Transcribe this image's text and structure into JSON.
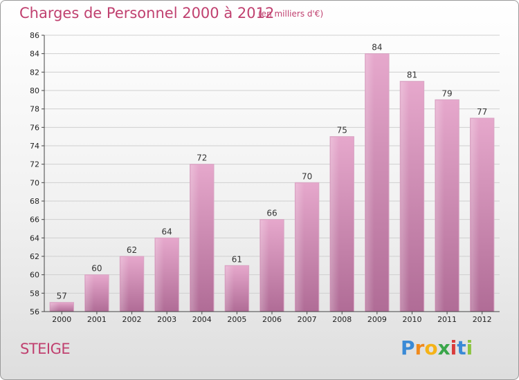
{
  "chart_data": {
    "type": "bar",
    "title": "Charges de Personnel 2000 à 2012",
    "subtitle": "(en milliers d'€)",
    "categories": [
      "2000",
      "2001",
      "2002",
      "2003",
      "2004",
      "2005",
      "2006",
      "2007",
      "2008",
      "2009",
      "2010",
      "2011",
      "2012"
    ],
    "values": [
      57,
      60,
      62,
      64,
      72,
      61,
      66,
      70,
      75,
      84,
      81,
      79,
      77
    ],
    "ylim": [
      56,
      86
    ],
    "yticks": [
      56,
      58,
      60,
      62,
      64,
      66,
      68,
      70,
      72,
      74,
      76,
      78,
      80,
      82,
      84,
      86
    ],
    "grid": true,
    "bar_color": "#d68fb8"
  },
  "commune": "STEIGE",
  "brand": {
    "letters": [
      "P",
      "r",
      "o",
      "x",
      "i",
      "t",
      "i"
    ],
    "colors": [
      "#3a8ad6",
      "#f08a1c",
      "#f5b318",
      "#3aa64a",
      "#d93b3b",
      "#3a8ad6",
      "#8bc43f"
    ]
  }
}
